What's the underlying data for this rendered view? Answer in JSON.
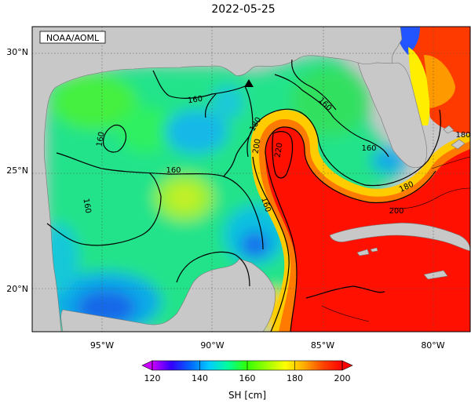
{
  "title": "2022-05-25",
  "credit": "NOAA/AOML",
  "lat_labels": [
    {
      "value": 30,
      "text": "30°N"
    },
    {
      "value": 25,
      "text": "25°N"
    },
    {
      "value": 20,
      "text": "20°N"
    }
  ],
  "lon_labels": [
    {
      "value": -95,
      "text": "95°W"
    },
    {
      "value": -90,
      "text": "90°W"
    },
    {
      "value": -85,
      "text": "85°W"
    },
    {
      "value": -80,
      "text": "80°W"
    }
  ],
  "contour_labels": [
    "160",
    "160",
    "160",
    "160",
    "160",
    "160",
    "160",
    "180",
    "180",
    "180",
    "200",
    "200",
    "220"
  ],
  "colorbar": {
    "label": "SH [cm]",
    "ticks": [
      "120",
      "140",
      "160",
      "180",
      "200"
    ],
    "min": 120,
    "max": 200,
    "colors": [
      "#cc00ff",
      "#3300ff",
      "#0066ff",
      "#00ccff",
      "#00ff99",
      "#33ff00",
      "#99ff00",
      "#ffff00",
      "#ffaa00",
      "#ff4400",
      "#ff0000"
    ]
  },
  "colors": {
    "land": "#c8c8c8",
    "contour": "#000000",
    "marker": "#000000"
  }
}
